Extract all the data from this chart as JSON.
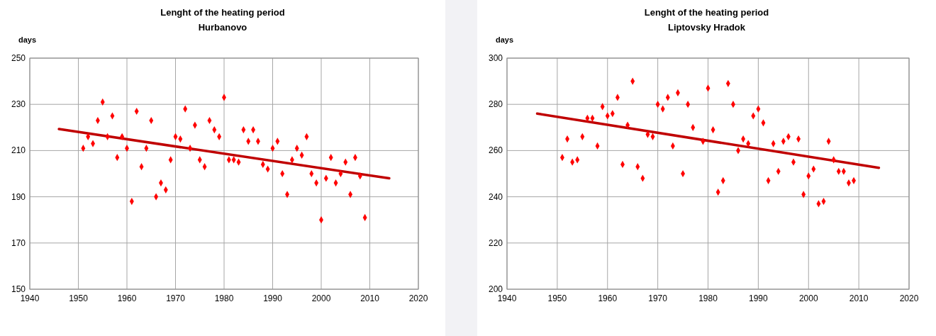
{
  "chart_data": [
    {
      "type": "scatter",
      "title": "Lenght of the heating period",
      "subtitle": "Hurbanovo",
      "ylabel": "days",
      "xlim": [
        1940,
        2020
      ],
      "xticks": [
        1940,
        1950,
        1960,
        1970,
        1980,
        1990,
        2000,
        2010,
        2020
      ],
      "ylim": [
        150,
        250
      ],
      "yticks": [
        150,
        170,
        190,
        210,
        230,
        250
      ],
      "grid": true,
      "marker": "diamond",
      "series": [
        {
          "color": "#ff0000",
          "x": [
            1951,
            1952,
            1953,
            1954,
            1955,
            1956,
            1957,
            1958,
            1959,
            1960,
            1961,
            1962,
            1963,
            1964,
            1965,
            1966,
            1967,
            1968,
            1969,
            1970,
            1971,
            1972,
            1973,
            1974,
            1975,
            1976,
            1977,
            1978,
            1979,
            1980,
            1981,
            1982,
            1983,
            1984,
            1985,
            1986,
            1987,
            1988,
            1989,
            1990,
            1991,
            1992,
            1993,
            1994,
            1995,
            1996,
            1997,
            1998,
            1999,
            2000,
            2001,
            2002,
            2003,
            2004,
            2005,
            2006,
            2007,
            2008,
            2009
          ],
          "values": [
            211,
            216,
            213,
            223,
            231,
            216,
            225,
            207,
            216,
            211,
            188,
            227,
            203,
            211,
            223,
            190,
            196,
            193,
            206,
            216,
            215,
            228,
            211,
            221,
            206,
            203,
            223,
            219,
            216,
            233,
            206,
            206,
            205,
            219,
            214,
            219,
            214,
            204,
            202,
            211,
            214,
            200,
            191,
            206,
            211,
            208,
            216,
            200,
            196,
            180,
            198,
            207,
            196,
            200,
            205,
            191,
            207,
            199,
            181
          ]
        },
        {
          "type": "line",
          "color": "#c00000",
          "marker": "none",
          "line_style": "solid",
          "x": [
            1946,
            2014
          ],
          "values": [
            219.3,
            198
          ]
        }
      ]
    },
    {
      "type": "scatter",
      "title": "Lenght of the heating period",
      "subtitle": "Liptovsky Hradok",
      "ylabel": "days",
      "xlim": [
        1940,
        2020
      ],
      "xticks": [
        1940,
        1950,
        1960,
        1970,
        1980,
        1990,
        2000,
        2010,
        2020
      ],
      "ylim": [
        200,
        300
      ],
      "yticks": [
        200,
        220,
        240,
        260,
        280,
        300
      ],
      "grid": true,
      "marker": "diamond",
      "series": [
        {
          "color": "#ff0000",
          "x": [
            1951,
            1952,
            1953,
            1954,
            1955,
            1956,
            1957,
            1958,
            1959,
            1960,
            1961,
            1962,
            1963,
            1964,
            1965,
            1966,
            1967,
            1968,
            1969,
            1970,
            1971,
            1972,
            1973,
            1974,
            1975,
            1976,
            1977,
            1979,
            1980,
            1981,
            1982,
            1983,
            1984,
            1985,
            1986,
            1987,
            1988,
            1989,
            1990,
            1991,
            1992,
            1993,
            1994,
            1995,
            1996,
            1997,
            1998,
            1999,
            2000,
            2001,
            2002,
            2003,
            2004,
            2005,
            2006,
            2007,
            2008,
            2009
          ],
          "values": [
            257,
            265,
            255,
            256,
            266,
            274,
            274,
            262,
            279,
            275,
            276,
            283,
            254,
            271,
            290,
            253,
            248,
            267,
            266,
            280,
            278,
            283,
            262,
            285,
            250,
            280,
            270,
            264,
            287,
            269,
            242,
            247,
            289,
            280,
            260,
            265,
            263,
            275,
            278,
            272,
            247,
            263,
            251,
            264,
            266,
            255,
            265,
            241,
            249,
            252,
            237,
            238,
            264,
            256,
            251,
            251,
            246,
            247
          ]
        },
        {
          "type": "line",
          "color": "#c00000",
          "marker": "none",
          "line_style": "solid",
          "x": [
            1946,
            2014
          ],
          "values": [
            276,
            252.5
          ]
        }
      ]
    }
  ]
}
